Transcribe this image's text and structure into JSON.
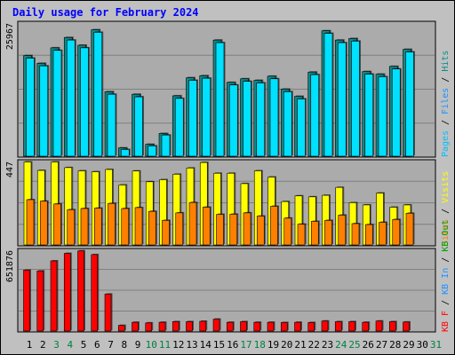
{
  "title": "Daily usage for February 2024",
  "colors": {
    "background": "#c0c0c0",
    "plot_bg": "#ababab",
    "pages": "#00bfff",
    "files": "#00e0ff",
    "hits": "#0e8a8a",
    "visits": "#ffff00",
    "sites": "#ff8000",
    "kb_f": "#ff0000",
    "kb_in": "#1e90ff",
    "kb_out": "#00a000",
    "weekday": "#000000",
    "weekend": "#008040"
  },
  "chart_data": [
    {
      "type": "bar",
      "panel": "hits-files-pages",
      "ymax_label": "25967",
      "ylim": [
        0,
        25967
      ],
      "legend_parts": [
        {
          "text": "Pages",
          "color_key": "pages"
        },
        {
          "text": " / ",
          "color_key": "weekday"
        },
        {
          "text": "Files",
          "color_key": "kb_in"
        },
        {
          "text": " / ",
          "color_key": "weekday"
        },
        {
          "text": "Hits",
          "color_key": "hits"
        }
      ],
      "categories": [
        "1",
        "2",
        "3",
        "4",
        "5",
        "6",
        "7",
        "8",
        "9",
        "10",
        "11",
        "12",
        "13",
        "14",
        "15",
        "16",
        "17",
        "18",
        "19",
        "20",
        "21",
        "22",
        "23",
        "24",
        "25",
        "26",
        "27",
        "28",
        "29",
        "30",
        "31"
      ],
      "series": [
        {
          "name": "Hits",
          "values": [
            19500,
            18000,
            21000,
            23000,
            21500,
            24500,
            12500,
            1600,
            12000,
            2300,
            4400,
            11700,
            15200,
            15600,
            22500,
            14300,
            15000,
            14700,
            15500,
            13000,
            11600,
            16300,
            24300,
            22500,
            22800,
            16400,
            15900,
            17400,
            20700,
            0,
            0
          ]
        },
        {
          "name": "Files",
          "values": [
            19000,
            17500,
            20500,
            22500,
            21000,
            24000,
            12000,
            1300,
            11500,
            2000,
            4100,
            11200,
            14700,
            15100,
            22000,
            13800,
            14500,
            14200,
            15000,
            12500,
            11100,
            15800,
            23800,
            22000,
            22300,
            15900,
            15400,
            16900,
            20200,
            0,
            0
          ]
        }
      ]
    },
    {
      "type": "bar",
      "panel": "visits-sites",
      "ymax_label": "447",
      "ylim": [
        0,
        447
      ],
      "legend_parts": [
        {
          "text": "Sites",
          "color_key": "sites"
        },
        {
          "text": " / ",
          "color_key": "weekday"
        },
        {
          "text": "Visits",
          "color_key": "visits"
        }
      ],
      "categories": [
        "1",
        "2",
        "3",
        "4",
        "5",
        "6",
        "7",
        "8",
        "9",
        "10",
        "11",
        "12",
        "13",
        "14",
        "15",
        "16",
        "17",
        "18",
        "19",
        "20",
        "21",
        "22",
        "23",
        "24",
        "25",
        "26",
        "27",
        "28",
        "29",
        "30",
        "31"
      ],
      "series": [
        {
          "name": "Visits",
          "values": [
            440,
            395,
            440,
            410,
            393,
            388,
            400,
            318,
            392,
            335,
            346,
            375,
            408,
            437,
            380,
            380,
            325,
            393,
            360,
            230,
            260,
            255,
            263,
            305,
            224,
            212,
            275,
            200,
            212,
            0,
            0
          ]
        },
        {
          "name": "Sites",
          "values": [
            240,
            232,
            217,
            187,
            193,
            195,
            220,
            193,
            198,
            178,
            130,
            170,
            225,
            200,
            162,
            163,
            170,
            153,
            205,
            142,
            110,
            125,
            130,
            158,
            113,
            108,
            120,
            135,
            168,
            0,
            0
          ]
        }
      ]
    },
    {
      "type": "bar",
      "panel": "kbytes",
      "ymax_label": "651876",
      "ylim": [
        0,
        651876
      ],
      "legend_parts": [
        {
          "text": "KB F",
          "color_key": "kb_f"
        },
        {
          "text": " / ",
          "color_key": "weekday"
        },
        {
          "text": "KB In",
          "color_key": "kb_in"
        },
        {
          "text": " / ",
          "color_key": "weekday"
        },
        {
          "text": "KB Out",
          "color_key": "kb_out"
        }
      ],
      "categories": [
        "1",
        "2",
        "3",
        "4",
        "5",
        "6",
        "7",
        "8",
        "9",
        "10",
        "11",
        "12",
        "13",
        "14",
        "15",
        "16",
        "17",
        "18",
        "19",
        "20",
        "21",
        "22",
        "23",
        "24",
        "25",
        "26",
        "27",
        "28",
        "29",
        "30",
        "31"
      ],
      "series": [
        {
          "name": "KB F",
          "values": [
            486000,
            480000,
            560000,
            620000,
            640000,
            610000,
            295000,
            45000,
            70000,
            65000,
            70000,
            75000,
            75000,
            78000,
            95000,
            70000,
            75000,
            70000,
            70000,
            68000,
            70000,
            68000,
            80000,
            75000,
            75000,
            70000,
            80000,
            75000,
            72000,
            0,
            0
          ]
        }
      ]
    }
  ],
  "x_axis": {
    "labels": [
      "1",
      "2",
      "3",
      "4",
      "5",
      "6",
      "7",
      "8",
      "9",
      "10",
      "11",
      "12",
      "13",
      "14",
      "15",
      "16",
      "17",
      "18",
      "19",
      "20",
      "21",
      "22",
      "23",
      "24",
      "25",
      "26",
      "27",
      "28",
      "29",
      "30",
      "31"
    ],
    "weekend": [
      false,
      false,
      true,
      true,
      false,
      false,
      false,
      false,
      false,
      true,
      true,
      false,
      false,
      false,
      false,
      false,
      true,
      true,
      false,
      false,
      false,
      false,
      false,
      true,
      true,
      false,
      false,
      false,
      false,
      false,
      true
    ]
  }
}
